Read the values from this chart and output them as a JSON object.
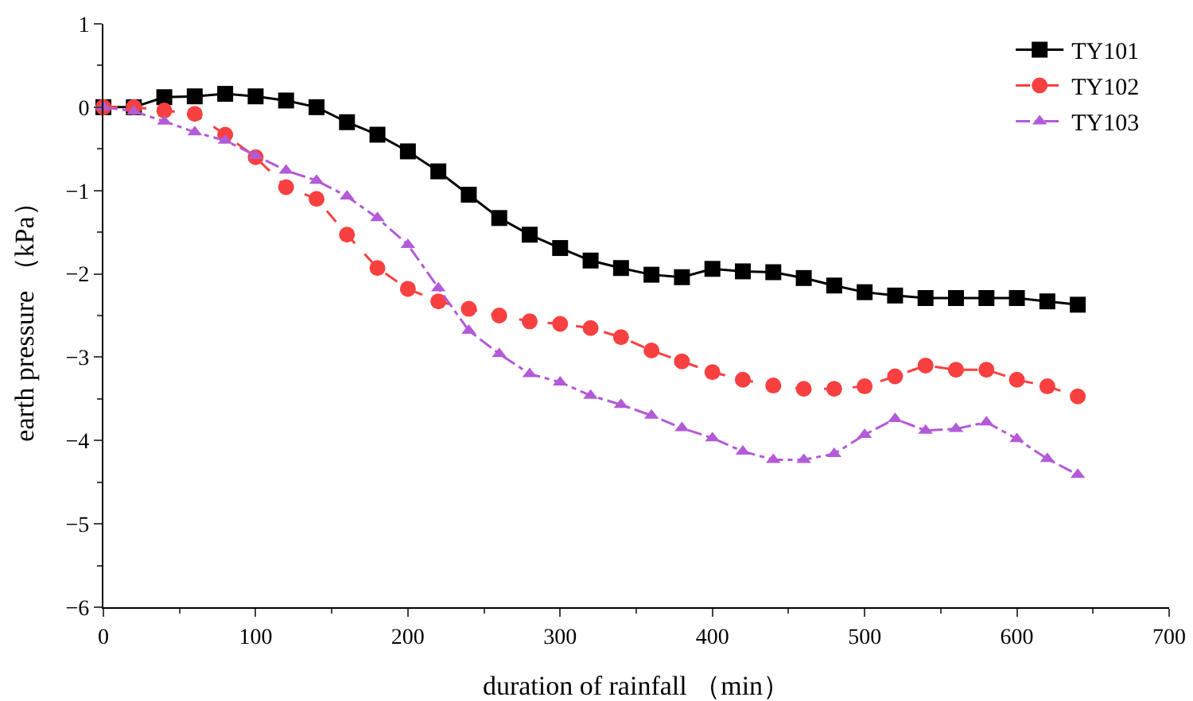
{
  "chart_data": {
    "type": "line",
    "xlabel": "duration of rainfall （min）",
    "ylabel": "earth pressure （kPa）",
    "x": [
      0,
      20,
      40,
      60,
      80,
      100,
      120,
      140,
      160,
      180,
      200,
      220,
      240,
      260,
      280,
      300,
      320,
      340,
      360,
      380,
      400,
      420,
      440,
      460,
      480,
      500,
      520,
      540,
      560,
      580,
      600,
      620,
      640
    ],
    "series": [
      {
        "name": "TY101",
        "color": "#000000",
        "marker": "square",
        "line_style": "solid",
        "values": [
          0,
          0,
          0.12,
          0.13,
          0.16,
          0.13,
          0.08,
          0,
          -0.18,
          -0.33,
          -0.53,
          -0.77,
          -1.05,
          -1.33,
          -1.53,
          -1.69,
          -1.84,
          -1.93,
          -2.01,
          -2.04,
          -1.94,
          -1.97,
          -1.98,
          -2.05,
          -2.14,
          -2.22,
          -2.26,
          -2.29,
          -2.29,
          -2.29,
          -2.29,
          -2.33,
          -2.37
        ]
      },
      {
        "name": "TY102",
        "color": "#f84040",
        "marker": "circle",
        "line_style": "dashed",
        "values": [
          0,
          0,
          -0.04,
          -0.08,
          -0.33,
          -0.6,
          -0.96,
          -1.1,
          -1.53,
          -1.93,
          -2.18,
          -2.33,
          -2.42,
          -2.5,
          -2.57,
          -2.6,
          -2.65,
          -2.76,
          -2.92,
          -3.05,
          -3.18,
          -3.27,
          -3.34,
          -3.38,
          -3.38,
          -3.35,
          -3.23,
          -3.1,
          -3.15,
          -3.15,
          -3.27,
          -3.35,
          -3.47
        ]
      },
      {
        "name": "TY103",
        "color": "#b35ad8",
        "marker": "triangle",
        "line_style": "dashdot",
        "values": [
          0,
          -0.05,
          -0.17,
          -0.3,
          -0.4,
          -0.58,
          -0.76,
          -0.88,
          -1.07,
          -1.33,
          -1.65,
          -2.17,
          -2.68,
          -2.96,
          -3.2,
          -3.3,
          -3.46,
          -3.57,
          -3.7,
          -3.85,
          -3.97,
          -4.13,
          -4.23,
          -4.23,
          -4.16,
          -3.93,
          -3.74,
          -3.88,
          -3.86,
          -3.78,
          -3.98,
          -4.22,
          -4.41
        ]
      }
    ],
    "xlim": [
      0,
      700
    ],
    "xticks": [
      0,
      100,
      200,
      300,
      400,
      500,
      600,
      700
    ],
    "ylim": [
      -6,
      1
    ],
    "yticks": [
      -6,
      -5,
      -4,
      -3,
      -2,
      -1,
      0,
      1
    ],
    "grid": false,
    "legend": "top right"
  }
}
